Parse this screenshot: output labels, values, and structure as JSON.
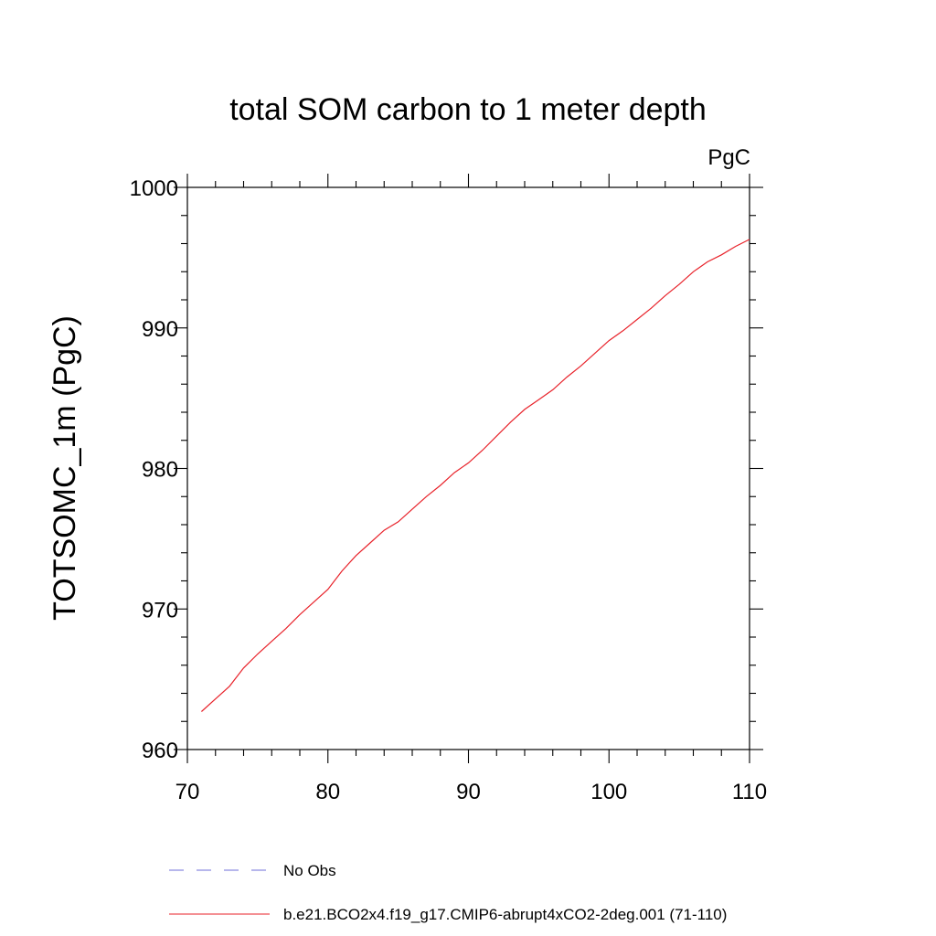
{
  "chart_data": {
    "type": "line",
    "title": "total SOM carbon to 1 meter depth",
    "units_label": "PgC",
    "xlabel": "",
    "ylabel": "TOTSOMC_1m  (PgC)",
    "xlim": [
      70,
      110
    ],
    "ylim": [
      960,
      1000
    ],
    "x_ticks": [
      "70",
      "80",
      "90",
      "100",
      "110"
    ],
    "y_ticks": [
      "960",
      "970",
      "980",
      "990",
      "1000"
    ],
    "grid": false,
    "legend_position": "bottom",
    "series": [
      {
        "name": "No Obs",
        "color": "#6f6fd8",
        "dash": "dashed",
        "x": [],
        "y": []
      },
      {
        "name": "b.e21.BCO2x4.f19_g17.CMIP6-abrupt4xCO2-2deg.001 (71-110)",
        "color": "#e8222a",
        "dash": "solid",
        "x": [
          71,
          72,
          73,
          74,
          75,
          76,
          77,
          78,
          79,
          80,
          81,
          82,
          83,
          84,
          85,
          86,
          87,
          88,
          89,
          90,
          91,
          92,
          93,
          94,
          95,
          96,
          97,
          98,
          99,
          100,
          101,
          102,
          103,
          104,
          105,
          106,
          107,
          108,
          109,
          110
        ],
        "y": [
          962.7,
          963.6,
          964.5,
          965.8,
          966.8,
          967.7,
          968.6,
          969.6,
          970.5,
          971.4,
          972.7,
          973.8,
          974.7,
          975.6,
          976.2,
          977.1,
          978.0,
          978.8,
          979.7,
          980.4,
          981.3,
          982.3,
          983.3,
          984.2,
          984.9,
          985.6,
          986.5,
          987.3,
          988.2,
          989.1,
          989.8,
          990.6,
          991.4,
          992.3,
          993.1,
          994.0,
          994.7,
          995.2,
          995.8,
          996.3
        ]
      }
    ]
  }
}
